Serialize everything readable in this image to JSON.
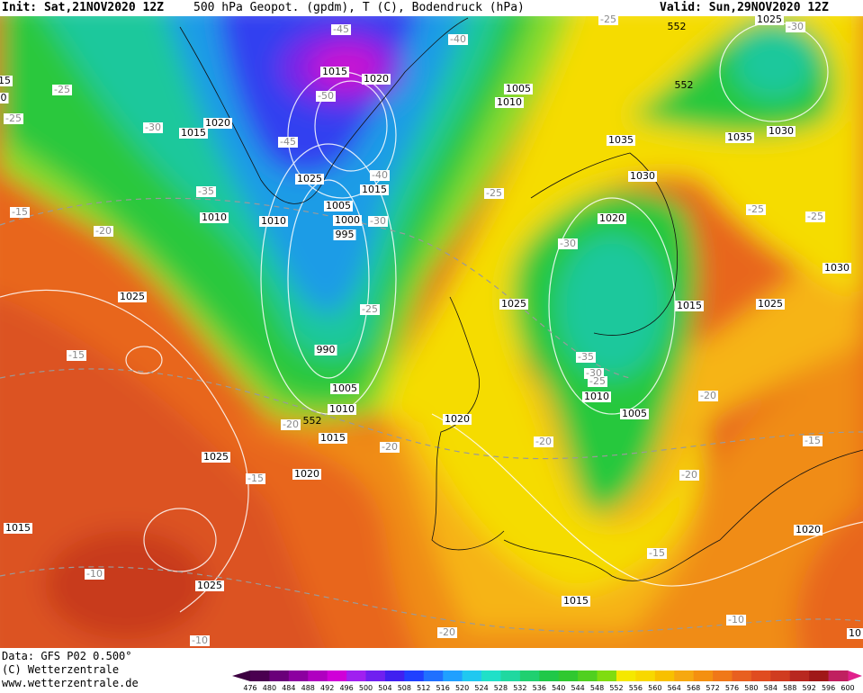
{
  "header": {
    "init": "Init: Sat,21NOV2020 12Z",
    "title": "500 hPa Geopot. (gpdm), T (C), Bodendruck (hPa)",
    "valid": "Valid: Sun,29NOV2020 12Z"
  },
  "footer": {
    "source": "Data: GFS P02 0.500°",
    "copyright": "(C) Wetterzentrale",
    "website": "www.wetterzentrale.de"
  },
  "contour_labels": {
    "pressure": [
      "1015",
      "1020",
      "1020",
      "1015",
      "1025",
      "1015",
      "1005",
      "1000",
      "995",
      "1010",
      "1010",
      "990",
      "1005",
      "1010",
      "1015",
      "1020",
      "1025",
      "1025",
      "1015",
      "1025",
      "1005",
      "1010",
      "1035",
      "1030",
      "1035",
      "1030",
      "1025",
      "1020",
      "1025",
      "1015",
      "1025",
      "1030",
      "1010",
      "1005",
      "1020",
      "1015",
      "1020",
      "10",
      "15",
      "0"
    ],
    "temperature": [
      "-45",
      "-40",
      "-25",
      "-30",
      "-25",
      "-25",
      "-30",
      "-50",
      "-45",
      "-40",
      "-35",
      "-30",
      "-15",
      "-20",
      "-25",
      "-30",
      "-25",
      "-25",
      "-25",
      "-15",
      "-35",
      "-30",
      "-25",
      "-20",
      "-20",
      "-20",
      "-20",
      "-15",
      "-15",
      "-20",
      "-15",
      "-10",
      "-10",
      "-20",
      "-10"
    ],
    "geopotential": [
      "552",
      "552",
      "552"
    ]
  },
  "colorbar": {
    "labels": [
      476,
      480,
      484,
      488,
      492,
      496,
      500,
      504,
      508,
      512,
      516,
      520,
      524,
      528,
      532,
      536,
      540,
      544,
      548,
      552,
      556,
      560,
      564,
      568,
      572,
      576,
      580,
      584,
      588,
      592,
      596,
      600
    ]
  }
}
